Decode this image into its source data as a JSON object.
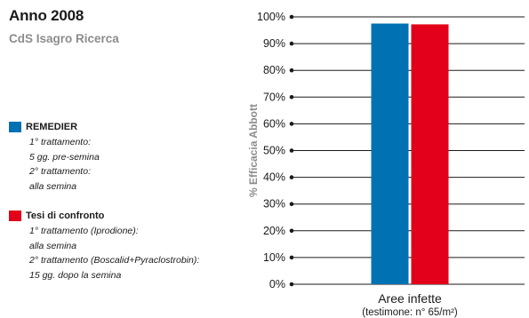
{
  "title": "Anno 2008",
  "subtitle": "CdS Isagro Ricerca",
  "legend": [
    {
      "name": "REMEDIER",
      "color": "#0071b3",
      "notes": [
        [
          "1° trattamento:",
          "5 gg. pre-semina"
        ],
        [
          "2° trattamento:",
          "alla semina"
        ]
      ]
    },
    {
      "name": "Tesi di confronto",
      "color": "#e2001a",
      "notes": [
        [
          "1° trattamento (Iprodione):",
          "alla semina"
        ],
        [
          "2° trattamento (Boscalid+Pyraclostrobin):",
          "15 gg. dopo la semina"
        ]
      ]
    }
  ],
  "chart_data": {
    "type": "bar",
    "ylabel": "% Efficacia Abbott",
    "ylim": [
      0,
      100
    ],
    "yticks": [
      "0%",
      "10%",
      "20%",
      "30%",
      "40%",
      "50%",
      "60%",
      "70%",
      "80%",
      "90%",
      "100%"
    ],
    "grid": true,
    "categories": [
      "Aree infette"
    ],
    "category_sublabel": "(testimone: n° 65/m²)",
    "series": [
      {
        "name": "REMEDIER",
        "color": "#0071b3",
        "values": [
          97.5
        ]
      },
      {
        "name": "Tesi di confronto",
        "color": "#e2001a",
        "values": [
          97.2
        ]
      }
    ]
  }
}
